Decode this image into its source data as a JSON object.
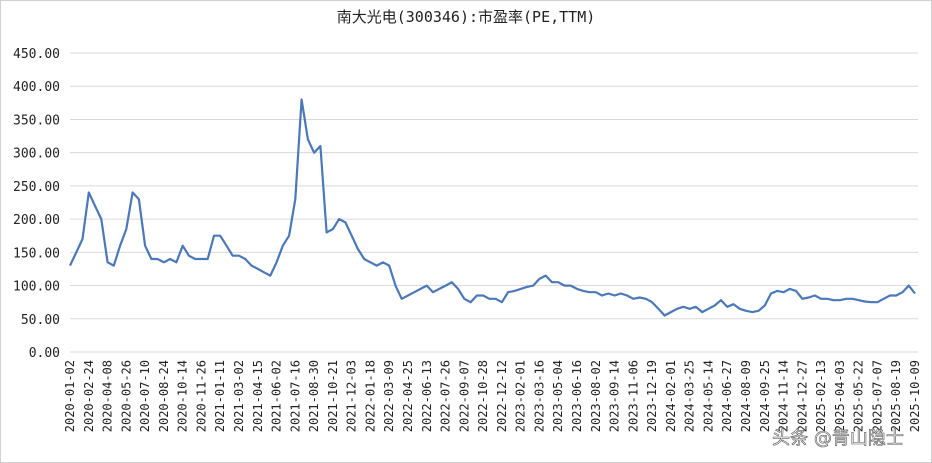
{
  "chart_data": {
    "type": "line",
    "title": "南大光电(300346):市盈率(PE,TTM)",
    "watermark": "头条 @青山隐士",
    "categories": [
      "2020-01-02",
      null,
      null,
      "2020-02-24",
      null,
      null,
      "2020-04-08",
      null,
      null,
      "2020-05-26",
      null,
      null,
      "2020-07-10",
      null,
      null,
      "2020-08-24",
      null,
      null,
      "2020-10-14",
      null,
      null,
      "2020-11-26",
      null,
      null,
      "2021-01-11",
      null,
      null,
      "2021-03-02",
      null,
      null,
      "2021-04-15",
      null,
      null,
      "2021-06-02",
      null,
      null,
      "2021-07-16",
      null,
      null,
      "2021-08-30",
      null,
      null,
      "2021-10-21",
      null,
      null,
      "2021-12-03",
      null,
      null,
      "2022-01-18",
      null,
      null,
      "2022-03-09",
      null,
      null,
      "2022-04-25",
      null,
      null,
      "2022-06-13",
      null,
      null,
      "2022-07-26",
      null,
      null,
      "2022-09-07",
      null,
      null,
      "2022-10-28",
      null,
      null,
      "2022-12-12",
      null,
      null,
      "2023-02-01",
      null,
      null,
      "2023-03-16",
      null,
      null,
      "2023-05-04",
      null,
      null,
      "2023-06-16",
      null,
      null,
      "2023-08-02",
      null,
      null,
      "2023-09-14",
      null,
      null,
      "2023-11-06",
      null,
      null,
      "2023-12-19",
      null,
      null,
      "2024-02-01",
      null,
      null,
      "2024-03-25",
      null,
      null,
      "2024-05-14",
      null,
      null,
      "2024-06-27",
      null,
      null,
      "2024-08-09",
      null,
      null,
      "2024-09-25",
      null,
      null,
      "2024-11-14",
      null,
      null,
      "2024-12-27",
      null,
      null,
      "2025-02-13",
      null,
      null,
      "2025-04-03",
      null,
      null,
      "2025-05-22",
      null,
      null,
      "2025-07-07",
      null,
      null,
      "2025-08-19",
      null,
      null,
      "2025-10-09"
    ],
    "series": [
      {
        "name": "市盈率(PE,TTM)",
        "color": "#4a78b8",
        "values": [
          130,
          150,
          170,
          240,
          220,
          200,
          135,
          130,
          160,
          185,
          240,
          230,
          160,
          140,
          140,
          135,
          140,
          135,
          160,
          145,
          140,
          140,
          140,
          175,
          175,
          160,
          145,
          145,
          140,
          130,
          125,
          120,
          115,
          135,
          160,
          175,
          230,
          380,
          320,
          300,
          310,
          180,
          185,
          200,
          195,
          175,
          155,
          140,
          135,
          130,
          135,
          130,
          100,
          80,
          85,
          90,
          95,
          100,
          90,
          95,
          100,
          105,
          95,
          80,
          75,
          85,
          85,
          80,
          80,
          75,
          90,
          92,
          95,
          98,
          100,
          110,
          115,
          105,
          105,
          100,
          100,
          95,
          92,
          90,
          90,
          85,
          88,
          85,
          88,
          85,
          80,
          82,
          80,
          75,
          65,
          55,
          60,
          65,
          68,
          65,
          68,
          60,
          65,
          70,
          78,
          68,
          72,
          65,
          62,
          60,
          62,
          70,
          88,
          92,
          90,
          95,
          92,
          80,
          82,
          85,
          80,
          80,
          78,
          78,
          80,
          80,
          78,
          76,
          75,
          75,
          80,
          85,
          85,
          90,
          100,
          88
        ]
      }
    ],
    "ylim": [
      0,
      450
    ],
    "yticks": [
      {
        "value": 0,
        "label": "0.00"
      },
      {
        "value": 50,
        "label": "50.00"
      },
      {
        "value": 100,
        "label": "100.00"
      },
      {
        "value": 150,
        "label": "150.00"
      },
      {
        "value": 200,
        "label": "200.00"
      },
      {
        "value": 250,
        "label": "250.00"
      },
      {
        "value": 300,
        "label": "300.00"
      },
      {
        "value": 350,
        "label": "350.00"
      },
      {
        "value": 400,
        "label": "400.00"
      },
      {
        "value": 450,
        "label": "450.00"
      }
    ],
    "grid": true
  }
}
